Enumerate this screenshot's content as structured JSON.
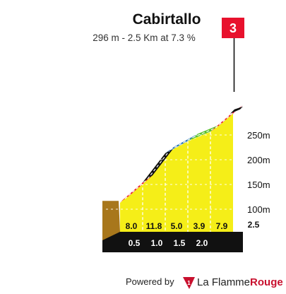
{
  "header": {
    "title": "Cabirtallo",
    "subtitle": "296 m - 2.5 Km at 7.3 %"
  },
  "flag": {
    "number": "3",
    "color": "#e8112d"
  },
  "footer": {
    "powered_by": "Powered by",
    "brand_part1": "La Flamme",
    "brand_part2": "Rouge",
    "brand_color": "#c8102e"
  },
  "chart_data": {
    "type": "area",
    "title": "Cabirtallo",
    "subtitle": "296 m - 2.5 Km at 7.3 %",
    "x_unit": "km",
    "y_unit": "m",
    "xlim": [
      0,
      2.5
    ],
    "altitude_ticks": [
      {
        "value": 100,
        "label": "100m"
      },
      {
        "value": 150,
        "label": "150m"
      },
      {
        "value": 200,
        "label": "200m"
      },
      {
        "value": 250,
        "label": "250m"
      }
    ],
    "distance_ticks": [
      {
        "value": 0.5,
        "label": "0.5"
      },
      {
        "value": 1.0,
        "label": "1.0"
      },
      {
        "value": 1.5,
        "label": "1.5"
      },
      {
        "value": 2.0,
        "label": "2.0"
      }
    ],
    "distance_total": {
      "value": 2.5,
      "label": "2.5"
    },
    "segments": [
      {
        "from_km": 0.0,
        "to_km": 0.5,
        "gradient": 8.0,
        "label": "8.0",
        "color": "#e8112d"
      },
      {
        "from_km": 0.5,
        "to_km": 1.0,
        "gradient": 11.8,
        "label": "11.8",
        "color": "#111111"
      },
      {
        "from_km": 1.0,
        "to_km": 1.5,
        "gradient": 5.0,
        "label": "5.0",
        "color": "#1f6fb5"
      },
      {
        "from_km": 1.5,
        "to_km": 2.0,
        "gradient": 3.9,
        "label": "3.9",
        "color": "#5ac22e"
      },
      {
        "from_km": 2.0,
        "to_km": 2.5,
        "gradient": 7.9,
        "label": "7.9",
        "color": "#e8112d"
      }
    ],
    "profile": [
      {
        "km": 0.0,
        "alt": 114
      },
      {
        "km": 0.5,
        "alt": 154
      },
      {
        "km": 1.0,
        "alt": 213
      },
      {
        "km": 1.5,
        "alt": 238
      },
      {
        "km": 2.0,
        "alt": 257
      },
      {
        "km": 2.5,
        "alt": 296
      }
    ],
    "colors": {
      "fill": "#f5ee18",
      "base": "#111111",
      "side_wall": "#a8771c"
    }
  }
}
